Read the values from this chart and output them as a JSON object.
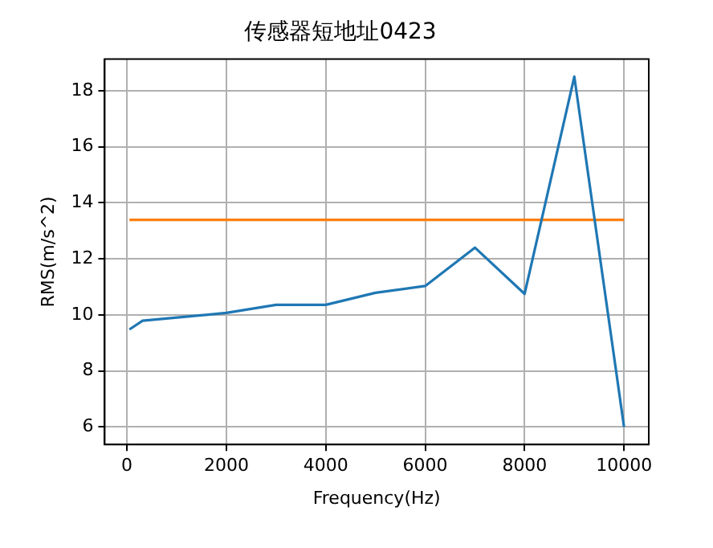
{
  "chart_data": {
    "type": "line",
    "title": "传感器短地址0423",
    "xlabel": "Frequency(Hz)",
    "ylabel": "RMS(m/s^2)",
    "xlim": [
      -447.5,
      10497.5
    ],
    "xticks": [
      0,
      2000,
      4000,
      6000,
      8000,
      10000
    ],
    "ylim": [
      5.375,
      19.125
    ],
    "yticks": [
      6,
      8,
      10,
      12,
      14,
      16,
      18
    ],
    "grid": true,
    "legend": false,
    "marker": "none",
    "line_style": "solid",
    "series": [
      {
        "color": "#1f77b4",
        "x": [
          50,
          315,
          2000,
          3000,
          4000,
          5000,
          6000,
          7000,
          8000,
          9000,
          10000
        ],
        "values": [
          9.48,
          9.79,
          10.07,
          10.36,
          10.36,
          10.79,
          11.03,
          12.4,
          10.75,
          18.5,
          6.0
        ]
      },
      {
        "color": "#ff7f0e",
        "x": [
          50,
          10000
        ],
        "values": [
          13.39,
          13.39
        ]
      }
    ]
  }
}
